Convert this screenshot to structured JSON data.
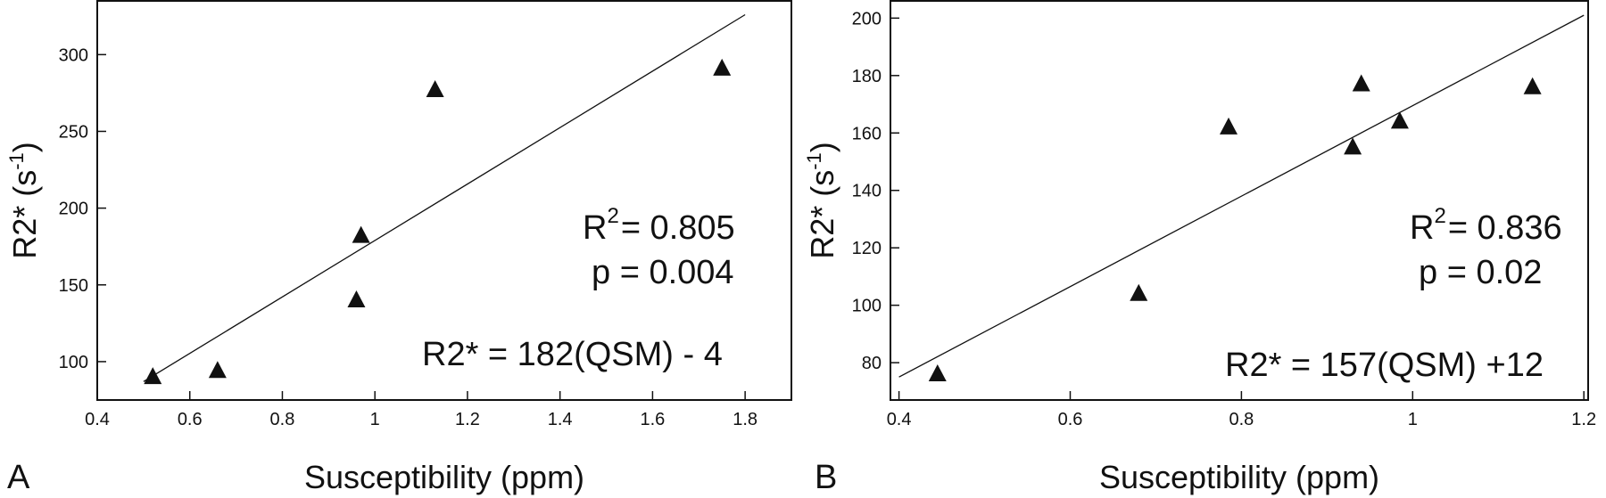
{
  "chart_data": [
    {
      "type": "scatter",
      "panel_label": "A",
      "xlabel": "Susceptibility (ppm)",
      "ylabel_main": "R2* (s",
      "ylabel_sup": "-1",
      "ylabel_close": ")",
      "xlim": [
        0.4,
        1.9
      ],
      "ylim": [
        75,
        335
      ],
      "xticks": [
        0.4,
        0.6,
        0.8,
        1,
        1.2,
        1.4,
        1.6,
        1.8
      ],
      "xtick_labels": [
        "0.4",
        "0.6",
        "0.8",
        "1",
        "1.2",
        "1.4",
        "1.6",
        "1.8"
      ],
      "yticks": [
        100,
        150,
        200,
        250,
        300
      ],
      "ytick_labels": [
        "100",
        "150",
        "200",
        "250",
        "300"
      ],
      "points": [
        {
          "x": 0.52,
          "y": 90
        },
        {
          "x": 0.66,
          "y": 94
        },
        {
          "x": 0.96,
          "y": 140
        },
        {
          "x": 0.97,
          "y": 182
        },
        {
          "x": 1.13,
          "y": 277
        },
        {
          "x": 1.75,
          "y": 291
        }
      ],
      "fit_line": {
        "x0": 0.5,
        "y0": 87,
        "x1": 1.8,
        "y1": 326
      },
      "annotations": {
        "r2_label": "R",
        "r2_sup": "2",
        "r2_value": "= 0.805",
        "p_text": "p  = 0.004",
        "equation": "R2* = 182(QSM) - 4"
      },
      "grid": false,
      "marker": "filled-triangle"
    },
    {
      "type": "scatter",
      "panel_label": "B",
      "xlabel": "Susceptibility (ppm)",
      "ylabel_main": "R2* (s",
      "ylabel_sup": "-1",
      "ylabel_close": ")",
      "xlim": [
        0.39,
        1.205
      ],
      "ylim": [
        67,
        206
      ],
      "xticks": [
        0.4,
        0.6,
        0.8,
        1,
        1.2
      ],
      "xtick_labels": [
        "0.4",
        "0.6",
        "0.8",
        "1",
        "1.2"
      ],
      "yticks": [
        80,
        100,
        120,
        140,
        160,
        180,
        200
      ],
      "ytick_labels": [
        "80",
        "100",
        "120",
        "140",
        "160",
        "180",
        "200"
      ],
      "points": [
        {
          "x": 0.445,
          "y": 76
        },
        {
          "x": 0.68,
          "y": 104
        },
        {
          "x": 0.785,
          "y": 162
        },
        {
          "x": 0.93,
          "y": 155
        },
        {
          "x": 0.94,
          "y": 177
        },
        {
          "x": 0.985,
          "y": 164
        },
        {
          "x": 1.14,
          "y": 176
        }
      ],
      "fit_line": {
        "x0": 0.4,
        "y0": 75,
        "x1": 1.2,
        "y1": 201
      },
      "annotations": {
        "r2_label": "R",
        "r2_sup": "2",
        "r2_value": "= 0.836",
        "p_text": "p  = 0.02",
        "equation": "R2* = 157(QSM) +12"
      },
      "grid": false,
      "marker": "filled-triangle"
    }
  ]
}
